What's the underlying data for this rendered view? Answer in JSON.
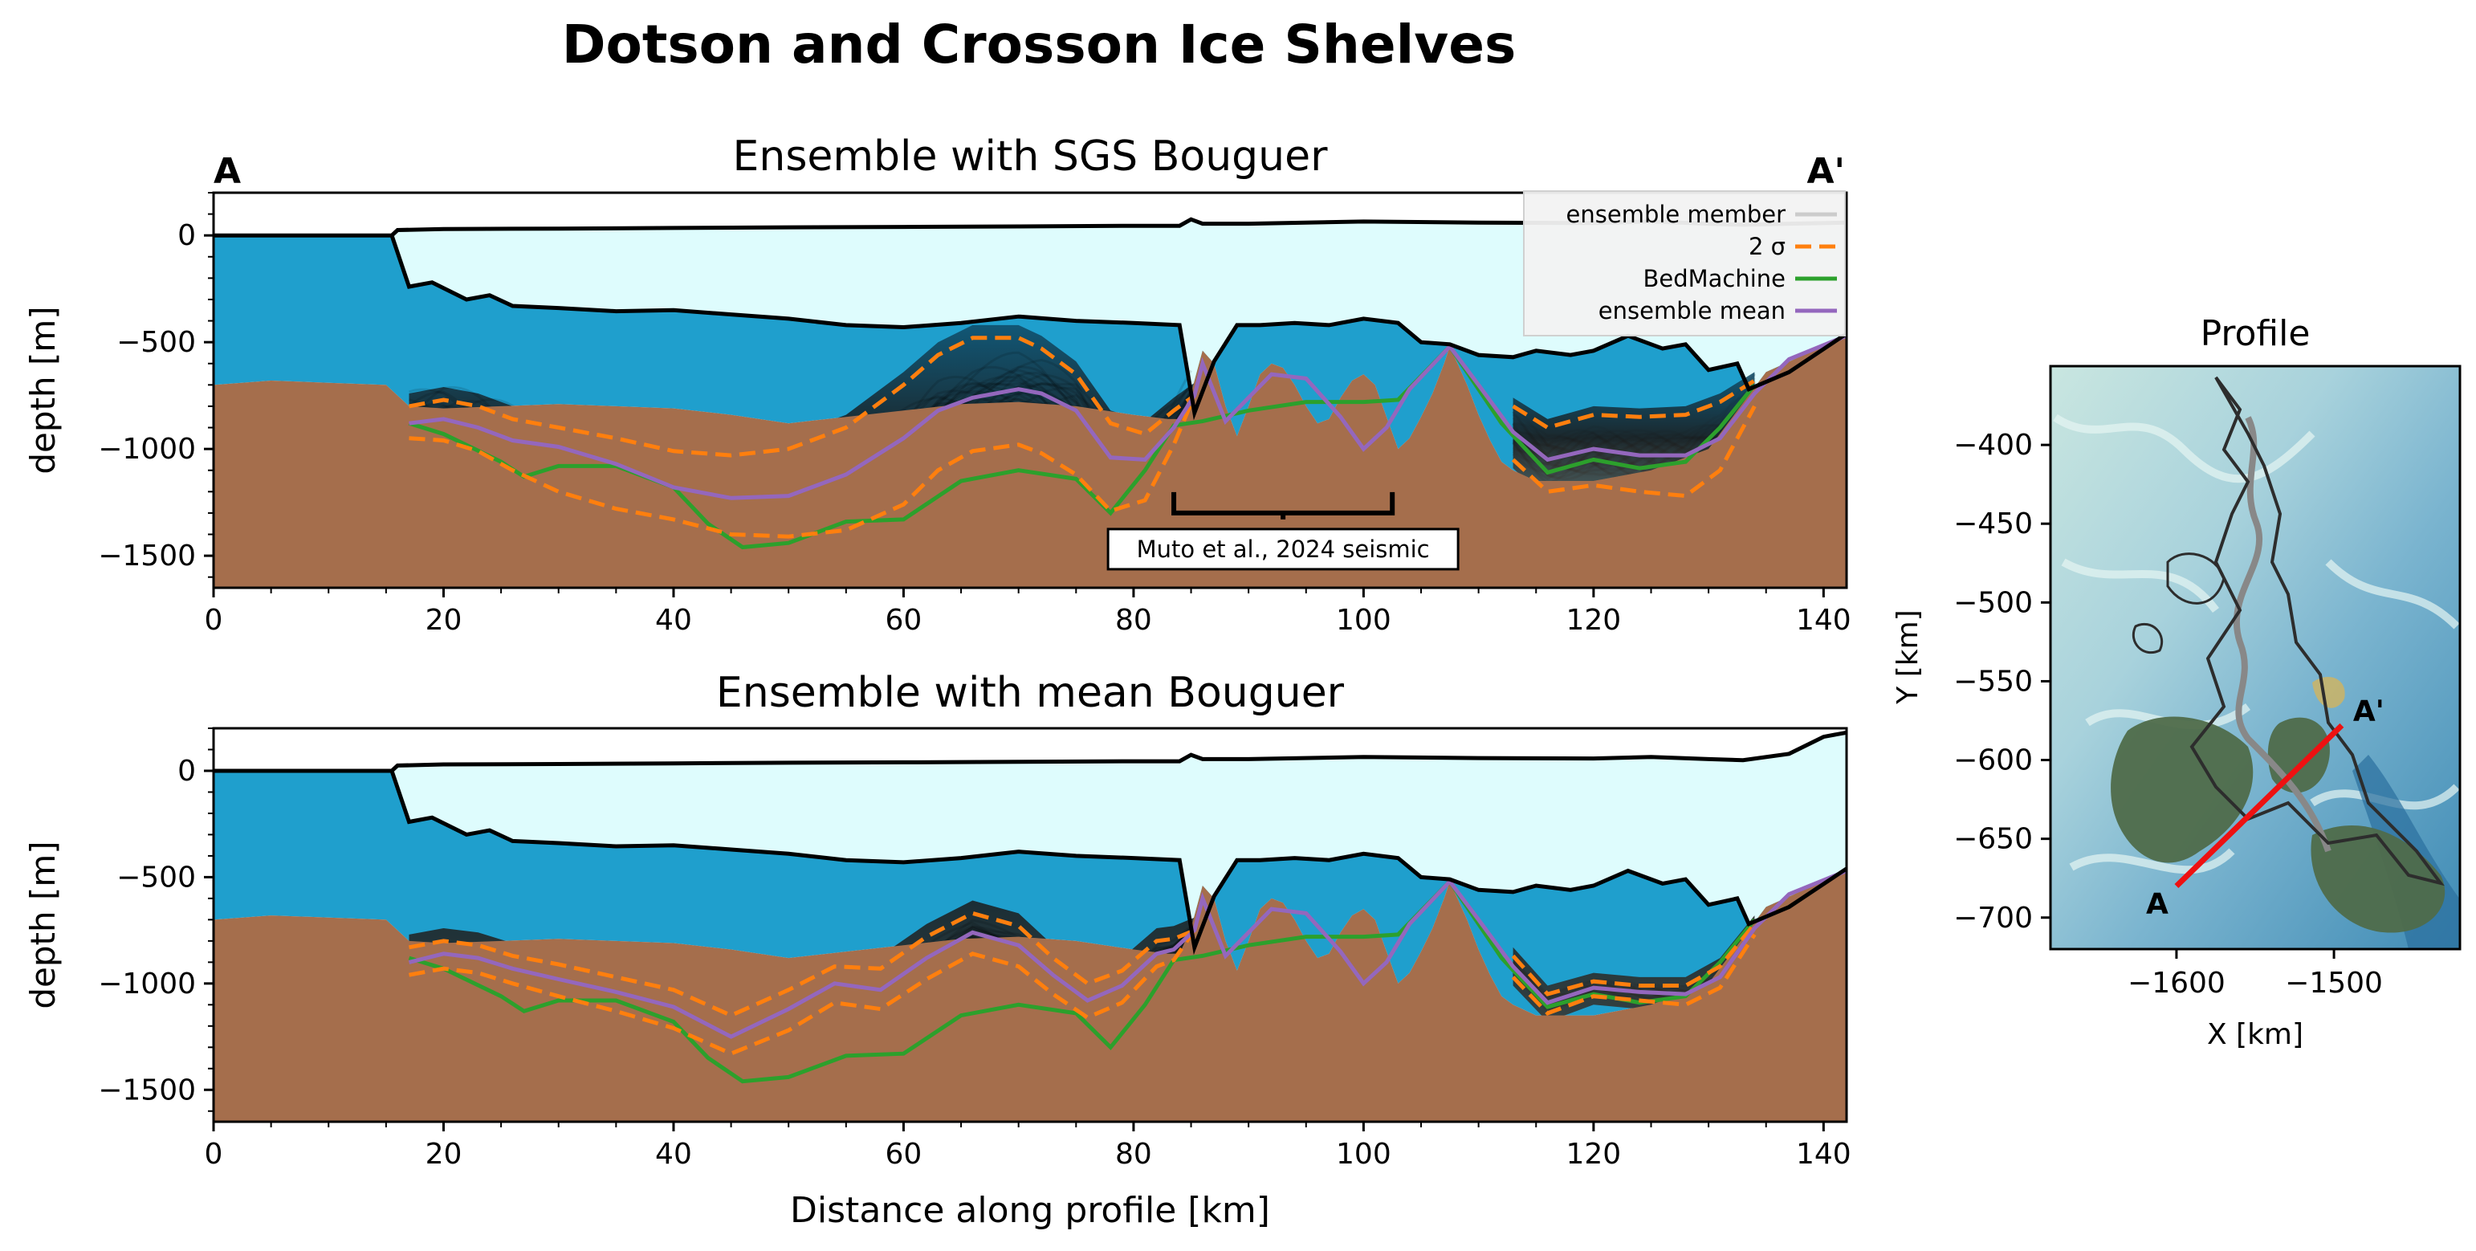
{
  "figure": {
    "title": "Dotson and Crosson Ice Shelves"
  },
  "chart_data": [
    {
      "type": "area",
      "title": "Ensemble with SGS Bouguer",
      "xlabel": "",
      "ylabel": "depth [m]",
      "xlim": [
        0,
        142
      ],
      "ylim": [
        -1650,
        200
      ],
      "xticks": [
        "0",
        "20",
        "40",
        "60",
        "80",
        "100",
        "120",
        "140"
      ],
      "yticks": [
        "0",
        "−500",
        "−1000",
        "−1500"
      ],
      "corner_labels": {
        "left": "A",
        "right": "A'"
      },
      "legend": {
        "placement": "top-right",
        "entries": [
          {
            "label": "ensemble member",
            "color": "#cccccc",
            "style": "solid"
          },
          {
            "label": "2 σ",
            "color": "#ff7f0e",
            "style": "dashed"
          },
          {
            "label": "BedMachine",
            "color": "#2ca02c",
            "style": "solid"
          },
          {
            "label": "ensemble mean",
            "color": "#9467bd",
            "style": "solid"
          }
        ]
      },
      "annotation": {
        "text": "Muto et al., 2024 seismic",
        "x_start": 83.5,
        "x_end": 102.5,
        "y": -1300
      },
      "surface_top": {
        "x": [
          0,
          15.5,
          16,
          20,
          30,
          40,
          50,
          60,
          70,
          80,
          84,
          85,
          86,
          90,
          100,
          110,
          120,
          125,
          130,
          133,
          137,
          142
        ],
        "y": [
          0,
          0,
          25,
          30,
          32,
          35,
          38,
          40,
          42,
          45,
          45,
          75,
          55,
          55,
          65,
          60,
          58,
          65,
          55,
          50,
          55,
          60
        ]
      },
      "ice_base": {
        "x": [
          15.5,
          17,
          19,
          22,
          24,
          26,
          30,
          35,
          40,
          45,
          50,
          55,
          60,
          65,
          70,
          75,
          80,
          84,
          85.3,
          87,
          89,
          91,
          94,
          97,
          100,
          103,
          105,
          107.5,
          110,
          113,
          115,
          118,
          120,
          123,
          126,
          128,
          130,
          132.5,
          133.5,
          137,
          142
        ],
        "y": [
          0,
          -240,
          -220,
          -300,
          -280,
          -330,
          -340,
          -355,
          -350,
          -370,
          -390,
          -420,
          -430,
          -410,
          -380,
          -400,
          -410,
          -420,
          -830,
          -590,
          -420,
          -420,
          -410,
          -420,
          -390,
          -410,
          -500,
          -510,
          -560,
          -570,
          -540,
          -560,
          -540,
          -470,
          -530,
          -510,
          -630,
          -600,
          -720,
          -640,
          -460
        ]
      },
      "bed": {
        "x": [
          0,
          5,
          10,
          15,
          17,
          20,
          25,
          30,
          35,
          40,
          45,
          50,
          55,
          60,
          65,
          70,
          75,
          80,
          83,
          84,
          85,
          86,
          87,
          88,
          89,
          90,
          91,
          92,
          93,
          94,
          95,
          96,
          97,
          98,
          99,
          100,
          101,
          102,
          103,
          104,
          105,
          106,
          107,
          107.5,
          108,
          109,
          110,
          111,
          112,
          113,
          115,
          120,
          125,
          130,
          135,
          142
        ],
        "y": [
          -700,
          -680,
          -690,
          -700,
          -800,
          -810,
          -800,
          -790,
          -800,
          -810,
          -840,
          -880,
          -850,
          -820,
          -790,
          -780,
          -800,
          -840,
          -860,
          -860,
          -740,
          -540,
          -600,
          -800,
          -940,
          -800,
          -650,
          -600,
          -620,
          -700,
          -800,
          -880,
          -860,
          -760,
          -680,
          -650,
          -700,
          -850,
          -1000,
          -950,
          -850,
          -740,
          -600,
          -520,
          -580,
          -700,
          -840,
          -960,
          -1060,
          -1100,
          -1150,
          -1150,
          -1100,
          -1000,
          -640,
          -470
        ]
      },
      "bedmachine": {
        "x": [
          17,
          20,
          25,
          27,
          30,
          35,
          40,
          43,
          46,
          50,
          55,
          60,
          65,
          70,
          75,
          78,
          81,
          83.5,
          86,
          90,
          95,
          100,
          103,
          107.5,
          112,
          116,
          120,
          124,
          128,
          131,
          134
        ],
        "y": [
          -880,
          -930,
          -1060,
          -1130,
          -1080,
          -1080,
          -1180,
          -1350,
          -1460,
          -1440,
          -1340,
          -1330,
          -1150,
          -1100,
          -1140,
          -1300,
          -1100,
          -890,
          -870,
          -820,
          -780,
          -780,
          -770,
          -520,
          -880,
          -1110,
          -1050,
          -1090,
          -1060,
          -900,
          -700
        ]
      },
      "ens_mean": {
        "x": [
          17,
          20,
          23,
          26,
          30,
          35,
          40,
          45,
          50,
          55,
          60,
          63,
          66,
          70,
          72,
          75,
          78,
          81,
          83.5,
          85.3,
          86,
          88,
          90,
          92,
          95,
          98,
          100,
          102,
          104,
          107.5,
          110,
          113,
          116,
          120,
          124,
          128,
          131,
          134,
          137,
          142
        ],
        "y": [
          -880,
          -860,
          -900,
          -960,
          -990,
          -1070,
          -1180,
          -1230,
          -1220,
          -1120,
          -950,
          -820,
          -760,
          -720,
          -740,
          -820,
          -1040,
          -1050,
          -900,
          -750,
          -600,
          -870,
          -760,
          -650,
          -670,
          -850,
          -1000,
          -900,
          -720,
          -520,
          -700,
          -920,
          -1050,
          -1000,
          -1030,
          -1030,
          -950,
          -740,
          -580,
          -470
        ]
      },
      "sigma_upper": {
        "x": [
          17,
          20,
          23,
          26,
          30,
          35,
          40,
          45,
          50,
          55,
          60,
          63,
          66,
          70,
          72,
          75,
          78,
          81,
          83.5,
          85.3
        ],
        "y": [
          -800,
          -770,
          -800,
          -860,
          -900,
          -950,
          -1010,
          -1030,
          -1000,
          -900,
          -700,
          -560,
          -480,
          -480,
          -530,
          -650,
          -880,
          -930,
          -820,
          -750
        ]
      },
      "sigma_lower": {
        "x": [
          17,
          20,
          23,
          26,
          30,
          35,
          40,
          45,
          50,
          55,
          60,
          63,
          66,
          70,
          72,
          75,
          78,
          81,
          83.5,
          85.3
        ],
        "y": [
          -950,
          -960,
          -1010,
          -1100,
          -1200,
          -1280,
          -1330,
          -1400,
          -1410,
          -1380,
          -1260,
          -1100,
          -1010,
          -980,
          -1020,
          -1120,
          -1290,
          -1240,
          -980,
          -750
        ]
      },
      "sigma_upper_east": {
        "x": [
          113,
          116,
          120,
          124,
          128,
          131,
          134
        ],
        "y": [
          -800,
          -900,
          -840,
          -850,
          -840,
          -780,
          -680
        ]
      },
      "sigma_lower_east": {
        "x": [
          113,
          116,
          120,
          124,
          128,
          131,
          134
        ],
        "y": [
          -1050,
          -1200,
          -1170,
          -1200,
          -1220,
          -1100,
          -800
        ]
      }
    },
    {
      "type": "area",
      "title": "Ensemble with mean Bouguer",
      "xlabel": "Distance along profile [km]",
      "ylabel": "depth [m]",
      "xlim": [
        0,
        142
      ],
      "ylim": [
        -1650,
        200
      ],
      "xticks": [
        "0",
        "20",
        "40",
        "60",
        "80",
        "100",
        "120",
        "140"
      ],
      "yticks": [
        "0",
        "−500",
        "−1000",
        "−1500"
      ],
      "surface_top": {
        "x": [
          0,
          15.5,
          16,
          20,
          30,
          40,
          50,
          60,
          70,
          80,
          84,
          85,
          86,
          90,
          100,
          110,
          120,
          125,
          130,
          133,
          137,
          140,
          142
        ],
        "y": [
          0,
          0,
          25,
          30,
          32,
          35,
          38,
          40,
          42,
          45,
          45,
          75,
          55,
          55,
          65,
          60,
          58,
          65,
          55,
          50,
          80,
          160,
          180
        ]
      },
      "ice_base": {
        "x": [
          15.5,
          17,
          19,
          22,
          24,
          26,
          30,
          35,
          40,
          45,
          50,
          55,
          60,
          65,
          70,
          75,
          80,
          84,
          85.3,
          87,
          89,
          91,
          94,
          97,
          100,
          103,
          105,
          107.5,
          110,
          113,
          115,
          118,
          120,
          123,
          126,
          128,
          130,
          132.5,
          133.5,
          137,
          142
        ],
        "y": [
          0,
          -240,
          -220,
          -300,
          -280,
          -330,
          -340,
          -355,
          -350,
          -370,
          -390,
          -420,
          -430,
          -410,
          -380,
          -400,
          -410,
          -420,
          -830,
          -590,
          -420,
          -420,
          -410,
          -420,
          -390,
          -410,
          -500,
          -510,
          -560,
          -570,
          -540,
          -560,
          -540,
          -470,
          -530,
          -510,
          -630,
          -600,
          -720,
          -640,
          -460
        ]
      },
      "bed": {
        "x": [
          0,
          5,
          10,
          15,
          17,
          20,
          25,
          30,
          35,
          40,
          45,
          50,
          55,
          60,
          65,
          70,
          75,
          80,
          83,
          84,
          85,
          86,
          87,
          88,
          89,
          90,
          91,
          92,
          93,
          94,
          95,
          96,
          97,
          98,
          99,
          100,
          101,
          102,
          103,
          104,
          105,
          106,
          107,
          107.5,
          108,
          109,
          110,
          111,
          112,
          113,
          115,
          120,
          125,
          130,
          135,
          142
        ],
        "y": [
          -700,
          -680,
          -690,
          -700,
          -800,
          -810,
          -800,
          -790,
          -800,
          -810,
          -840,
          -880,
          -850,
          -820,
          -790,
          -780,
          -800,
          -840,
          -860,
          -860,
          -740,
          -540,
          -600,
          -800,
          -940,
          -800,
          -650,
          -600,
          -620,
          -700,
          -800,
          -880,
          -860,
          -760,
          -680,
          -650,
          -700,
          -850,
          -1000,
          -950,
          -850,
          -740,
          -600,
          -520,
          -580,
          -700,
          -840,
          -960,
          -1060,
          -1100,
          -1150,
          -1150,
          -1100,
          -1000,
          -640,
          -470
        ]
      },
      "bedmachine": {
        "x": [
          17,
          20,
          25,
          27,
          30,
          35,
          40,
          43,
          46,
          50,
          55,
          60,
          65,
          70,
          75,
          78,
          81,
          83.5,
          86,
          90,
          95,
          100,
          103,
          107.5,
          112,
          116,
          120,
          124,
          128,
          131,
          134
        ],
        "y": [
          -880,
          -930,
          -1060,
          -1130,
          -1080,
          -1080,
          -1180,
          -1350,
          -1460,
          -1440,
          -1340,
          -1330,
          -1150,
          -1100,
          -1140,
          -1300,
          -1100,
          -890,
          -870,
          -820,
          -780,
          -780,
          -770,
          -520,
          -880,
          -1110,
          -1050,
          -1090,
          -1060,
          -900,
          -700
        ]
      },
      "ens_mean": {
        "x": [
          17,
          20,
          23,
          26,
          30,
          35,
          40,
          45,
          50,
          54,
          58,
          62,
          66,
          70,
          73,
          76,
          79,
          82,
          83.5,
          85.3,
          86,
          88,
          90,
          92,
          95,
          98,
          100,
          102,
          104,
          107.5,
          110,
          113,
          116,
          120,
          124,
          128,
          131,
          134,
          137,
          142
        ],
        "y": [
          -900,
          -860,
          -880,
          -930,
          -980,
          -1040,
          -1110,
          -1250,
          -1120,
          -1000,
          -1030,
          -880,
          -760,
          -820,
          -960,
          -1080,
          -1010,
          -860,
          -840,
          -750,
          -600,
          -870,
          -760,
          -650,
          -670,
          -850,
          -1000,
          -900,
          -720,
          -520,
          -700,
          -920,
          -1090,
          -1020,
          -1040,
          -1050,
          -970,
          -740,
          -580,
          -470
        ]
      },
      "sigma_upper": {
        "x": [
          17,
          20,
          23,
          26,
          30,
          35,
          40,
          45,
          50,
          54,
          58,
          62,
          66,
          70,
          73,
          76,
          79,
          82,
          83.5,
          85.3
        ],
        "y": [
          -830,
          -800,
          -820,
          -870,
          -910,
          -970,
          -1030,
          -1150,
          -1030,
          -920,
          -930,
          -780,
          -670,
          -730,
          -880,
          -1000,
          -940,
          -800,
          -790,
          -750
        ]
      },
      "sigma_lower": {
        "x": [
          17,
          20,
          23,
          26,
          30,
          35,
          40,
          45,
          50,
          54,
          58,
          62,
          66,
          70,
          73,
          76,
          79,
          82,
          83.5,
          85.3
        ],
        "y": [
          -960,
          -930,
          -950,
          -1000,
          -1060,
          -1130,
          -1210,
          -1330,
          -1220,
          -1090,
          -1120,
          -980,
          -860,
          -920,
          -1050,
          -1160,
          -1090,
          -920,
          -890,
          -750
        ]
      },
      "sigma_upper_east": {
        "x": [
          113,
          116,
          120,
          124,
          128,
          131,
          134
        ],
        "y": [
          -870,
          -1050,
          -990,
          -1010,
          -1010,
          -920,
          -720
        ]
      },
      "sigma_lower_east": {
        "x": [
          113,
          116,
          120,
          124,
          128,
          131,
          134
        ],
        "y": [
          -970,
          -1140,
          -1060,
          -1080,
          -1100,
          -1020,
          -770
        ]
      }
    },
    {
      "type": "heatmap",
      "title": "Profile",
      "xlabel": "X [km]",
      "ylabel": "Y [km]",
      "xlim": [
        -1680,
        -1420
      ],
      "ylim": [
        -720,
        -350
      ],
      "xticks": [
        "−1600",
        "−1500"
      ],
      "yticks": [
        "−400",
        "−450",
        "−500",
        "−550",
        "−600",
        "−650",
        "−700"
      ],
      "profile_line": {
        "start": [
          -1600,
          -680
        ],
        "end": [
          -1495,
          -578
        ],
        "color": "#ee1111"
      },
      "endpoint_labels": {
        "start": "A",
        "end": "A'"
      }
    }
  ]
}
